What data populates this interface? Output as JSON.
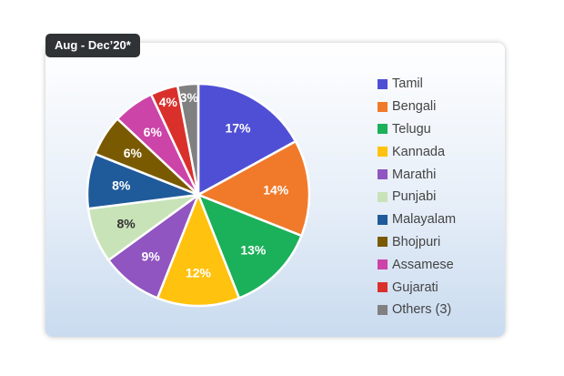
{
  "chart_data": {
    "type": "pie",
    "title": "Aug - Dec’20*",
    "categories": [
      "Tamil",
      "Bengali",
      "Telugu",
      "Kannada",
      "Marathi",
      "Punjabi",
      "Malayalam",
      "Bhojpuri",
      "Assamese",
      "Gujarati",
      "Others (3)"
    ],
    "values": [
      17,
      14,
      13,
      12,
      9,
      8,
      8,
      6,
      6,
      4,
      3
    ],
    "labels": [
      "17%",
      "14%",
      "13%",
      "12%",
      "9%",
      "8%",
      "8%",
      "6%",
      "6%",
      "4%",
      "3%"
    ],
    "colors": [
      "#4f4fd6",
      "#f07a2a",
      "#1bb05a",
      "#ffc20e",
      "#9055c0",
      "#c8e3b8",
      "#1f5a9a",
      "#7a5a00",
      "#cc44a8",
      "#d9302c",
      "#808080"
    ],
    "label_colors": [
      "#fff",
      "#fff",
      "#fff",
      "#fff",
      "#fff",
      "#333",
      "#fff",
      "#fff",
      "#fff",
      "#fff",
      "#fff"
    ],
    "start": "top",
    "direction": "clockwise",
    "legend_position": "right"
  }
}
